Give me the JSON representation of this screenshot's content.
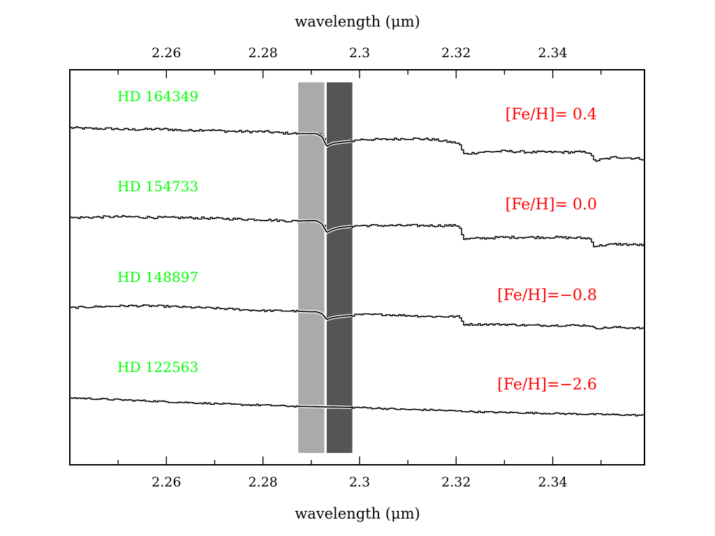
{
  "chart_data": {
    "type": "line",
    "title": "",
    "xlabel": "wavelength (μm)",
    "xlabel_top": "wavelength (μm)",
    "ylabel": "",
    "xlim": [
      2.24,
      2.359
    ],
    "x_ticks": [
      2.26,
      2.28,
      2.3,
      2.32,
      2.34
    ],
    "x_tick_labels": [
      "2.26",
      "2.28",
      "2.3",
      "2.32",
      "2.34"
    ],
    "x_minor_tick_step": 0.01,
    "grid": false,
    "legend": "none",
    "bands": [
      {
        "x_start": 2.2873,
        "x_end": 2.2927,
        "color": "#aaaaaa"
      },
      {
        "x_start": 2.2932,
        "x_end": 2.2985,
        "color": "#555555"
      }
    ],
    "series": [
      {
        "name": "HD 164349",
        "feh_label": "[Fe/H]= 0.4",
        "color": "#000000",
        "x": [
          2.24,
          2.2445,
          2.2485,
          2.252,
          2.256,
          2.26,
          2.264,
          2.268,
          2.272,
          2.276,
          2.28,
          2.284,
          2.287,
          2.2895,
          2.291,
          2.2922,
          2.2932,
          2.2945,
          2.296,
          2.298,
          2.3,
          2.305,
          2.31,
          2.315,
          2.3205,
          2.3215,
          2.325,
          2.33,
          2.335,
          2.34,
          2.3475,
          2.3485,
          2.353,
          2.359
        ],
        "y": [
          0.94,
          0.93,
          0.93,
          0.92,
          0.925,
          0.925,
          0.91,
          0.92,
          0.905,
          0.9,
          0.9,
          0.885,
          0.88,
          0.88,
          0.88,
          0.85,
          0.75,
          0.78,
          0.79,
          0.8,
          0.82,
          0.82,
          0.83,
          0.82,
          0.78,
          0.67,
          0.69,
          0.7,
          0.69,
          0.69,
          0.69,
          0.6,
          0.64,
          0.62
        ],
        "noise": 0.012
      },
      {
        "name": "HD 154733",
        "feh_label": "[Fe/H]= 0.0",
        "color": "#000000",
        "x": [
          2.24,
          2.2445,
          2.2485,
          2.252,
          2.256,
          2.26,
          2.264,
          2.268,
          2.272,
          2.276,
          2.28,
          2.284,
          2.287,
          2.2895,
          2.291,
          2.2922,
          2.2932,
          2.2945,
          2.296,
          2.298,
          2.3,
          2.305,
          2.31,
          2.315,
          2.3205,
          2.3215,
          2.325,
          2.33,
          2.335,
          2.34,
          2.3475,
          2.3485,
          2.353,
          2.359
        ],
        "y": [
          0.6,
          0.605,
          0.61,
          0.61,
          0.605,
          0.6,
          0.6,
          0.595,
          0.59,
          0.585,
          0.58,
          0.57,
          0.565,
          0.57,
          0.57,
          0.54,
          0.45,
          0.48,
          0.5,
          0.51,
          0.52,
          0.52,
          0.52,
          0.52,
          0.52,
          0.38,
          0.39,
          0.4,
          0.4,
          0.4,
          0.39,
          0.31,
          0.33,
          0.32
        ],
        "noise": 0.012
      },
      {
        "name": "HD 148897",
        "feh_label": "[Fe/H]=−0.8",
        "color": "#000000",
        "x": [
          2.24,
          2.2445,
          2.2485,
          2.252,
          2.256,
          2.26,
          2.264,
          2.268,
          2.272,
          2.276,
          2.28,
          2.284,
          2.287,
          2.2895,
          2.291,
          2.2922,
          2.2932,
          2.2945,
          2.296,
          2.298,
          2.3,
          2.305,
          2.31,
          2.315,
          2.3205,
          2.3215,
          2.325,
          2.33,
          2.335,
          2.34,
          2.3475,
          2.3485,
          2.353,
          2.359
        ],
        "y": [
          0.23,
          0.24,
          0.245,
          0.25,
          0.25,
          0.245,
          0.235,
          0.23,
          0.22,
          0.21,
          0.2,
          0.2,
          0.195,
          0.19,
          0.19,
          0.17,
          0.11,
          0.13,
          0.14,
          0.15,
          0.16,
          0.16,
          0.15,
          0.14,
          0.14,
          0.06,
          0.06,
          0.06,
          0.05,
          0.05,
          0.05,
          0.02,
          0.03,
          0.02
        ],
        "noise": 0.01
      },
      {
        "name": "HD 122563",
        "feh_label": "[Fe/H]=−2.6",
        "color": "#000000",
        "x": [
          2.24,
          2.245,
          2.25,
          2.255,
          2.26,
          2.265,
          2.27,
          2.275,
          2.28,
          2.285,
          2.29,
          2.295,
          2.3,
          2.305,
          2.31,
          2.315,
          2.32,
          2.325,
          2.33,
          2.335,
          2.34,
          2.345,
          2.35,
          2.355,
          2.359
        ],
        "y": [
          -0.12,
          -0.13,
          -0.14,
          -0.15,
          -0.16,
          -0.17,
          -0.18,
          -0.19,
          -0.195,
          -0.205,
          -0.21,
          -0.215,
          -0.22,
          -0.23,
          -0.24,
          -0.245,
          -0.255,
          -0.265,
          -0.27,
          -0.275,
          -0.28,
          -0.285,
          -0.29,
          -0.295,
          -0.3
        ],
        "noise": 0.008
      }
    ]
  }
}
